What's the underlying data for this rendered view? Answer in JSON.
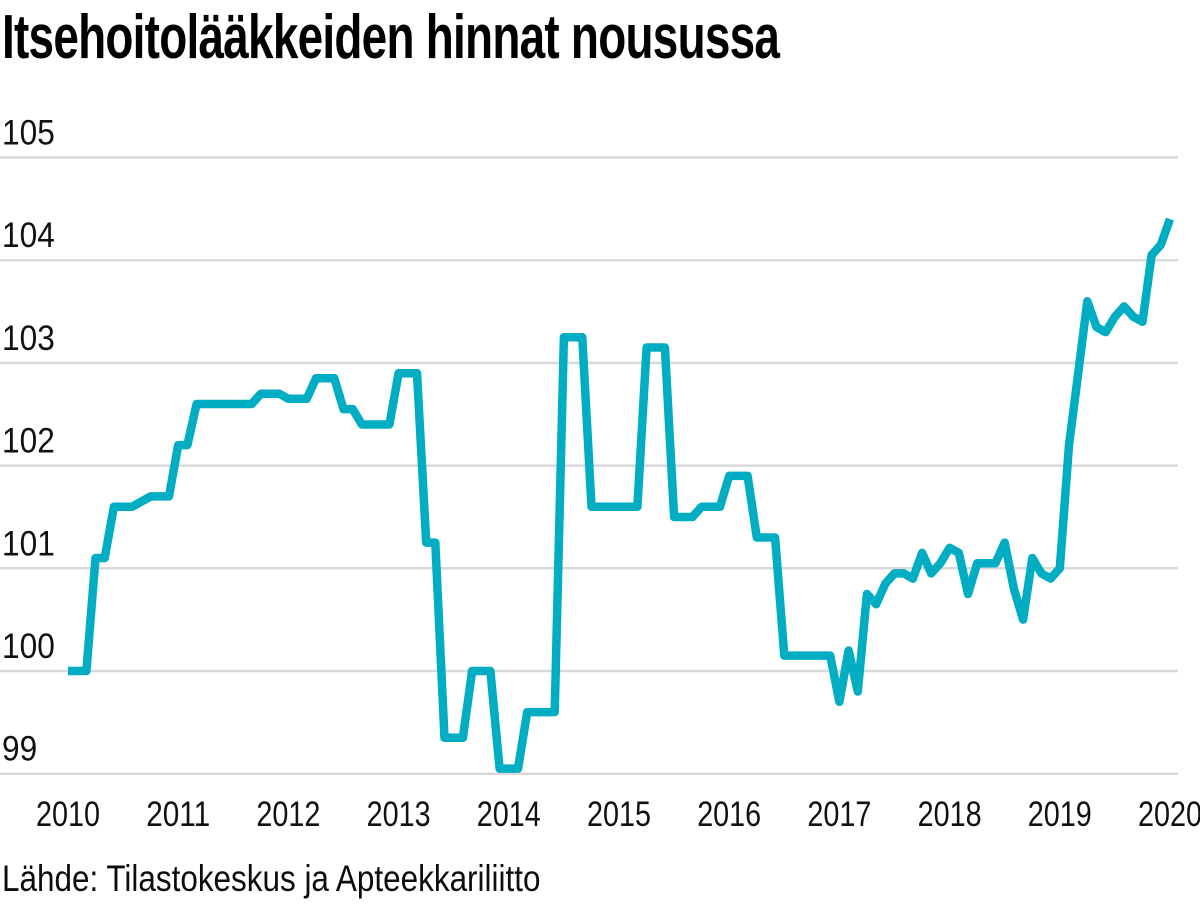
{
  "title": "Itsehoitolääkkeiden hinnat nousussa",
  "source": "Lähde: Tilastokeskus ja Apteekkariliitto",
  "colors": {
    "line": "#00adc2",
    "grid": "#d9d9d9",
    "title_text": "#000000",
    "axis_text": "#111111",
    "background": "#ffffff"
  },
  "chart_data": {
    "type": "line",
    "title": "Itsehoitolääkkeiden hinnat nousussa",
    "xlabel": "",
    "ylabel": "",
    "grid": true,
    "legend": false,
    "frequency": "monthly",
    "start": "2010-01",
    "end": "2020-01",
    "ylim": [
      98.8,
      105.4
    ],
    "y_ticks": [
      105,
      104,
      103,
      102,
      101,
      100,
      99
    ],
    "x_tick_labels": [
      "2010",
      "2011",
      "2012",
      "2013",
      "2014",
      "2015",
      "2016",
      "2017",
      "2018",
      "2019",
      "2020"
    ],
    "values": [
      100.0,
      100.0,
      100.0,
      101.1,
      101.1,
      101.6,
      101.6,
      101.6,
      101.65,
      101.7,
      101.7,
      101.7,
      102.2,
      102.2,
      102.6,
      102.6,
      102.6,
      102.6,
      102.6,
      102.6,
      102.6,
      102.7,
      102.7,
      102.7,
      102.65,
      102.65,
      102.65,
      102.85,
      102.85,
      102.85,
      102.55,
      102.55,
      102.4,
      102.4,
      102.4,
      102.4,
      102.9,
      102.9,
      102.9,
      101.25,
      101.25,
      99.35,
      99.35,
      99.35,
      100.0,
      100.0,
      100.0,
      99.05,
      99.05,
      99.05,
      99.6,
      99.6,
      99.6,
      99.6,
      103.25,
      103.25,
      103.25,
      101.6,
      101.6,
      101.6,
      101.6,
      101.6,
      101.6,
      103.15,
      103.15,
      103.15,
      101.5,
      101.5,
      101.5,
      101.6,
      101.6,
      101.6,
      101.9,
      101.9,
      101.9,
      101.3,
      101.3,
      101.3,
      100.15,
      100.15,
      100.15,
      100.15,
      100.15,
      100.15,
      99.7,
      100.2,
      99.8,
      100.75,
      100.65,
      100.85,
      100.95,
      100.95,
      100.9,
      101.15,
      100.95,
      101.05,
      101.2,
      101.15,
      100.75,
      101.05,
      101.05,
      101.05,
      101.25,
      100.8,
      100.5,
      101.1,
      100.95,
      100.9,
      101.0,
      102.2,
      102.9,
      103.6,
      103.35,
      103.3,
      103.45,
      103.55,
      103.45,
      103.4,
      104.05,
      104.15,
      104.4
    ]
  }
}
